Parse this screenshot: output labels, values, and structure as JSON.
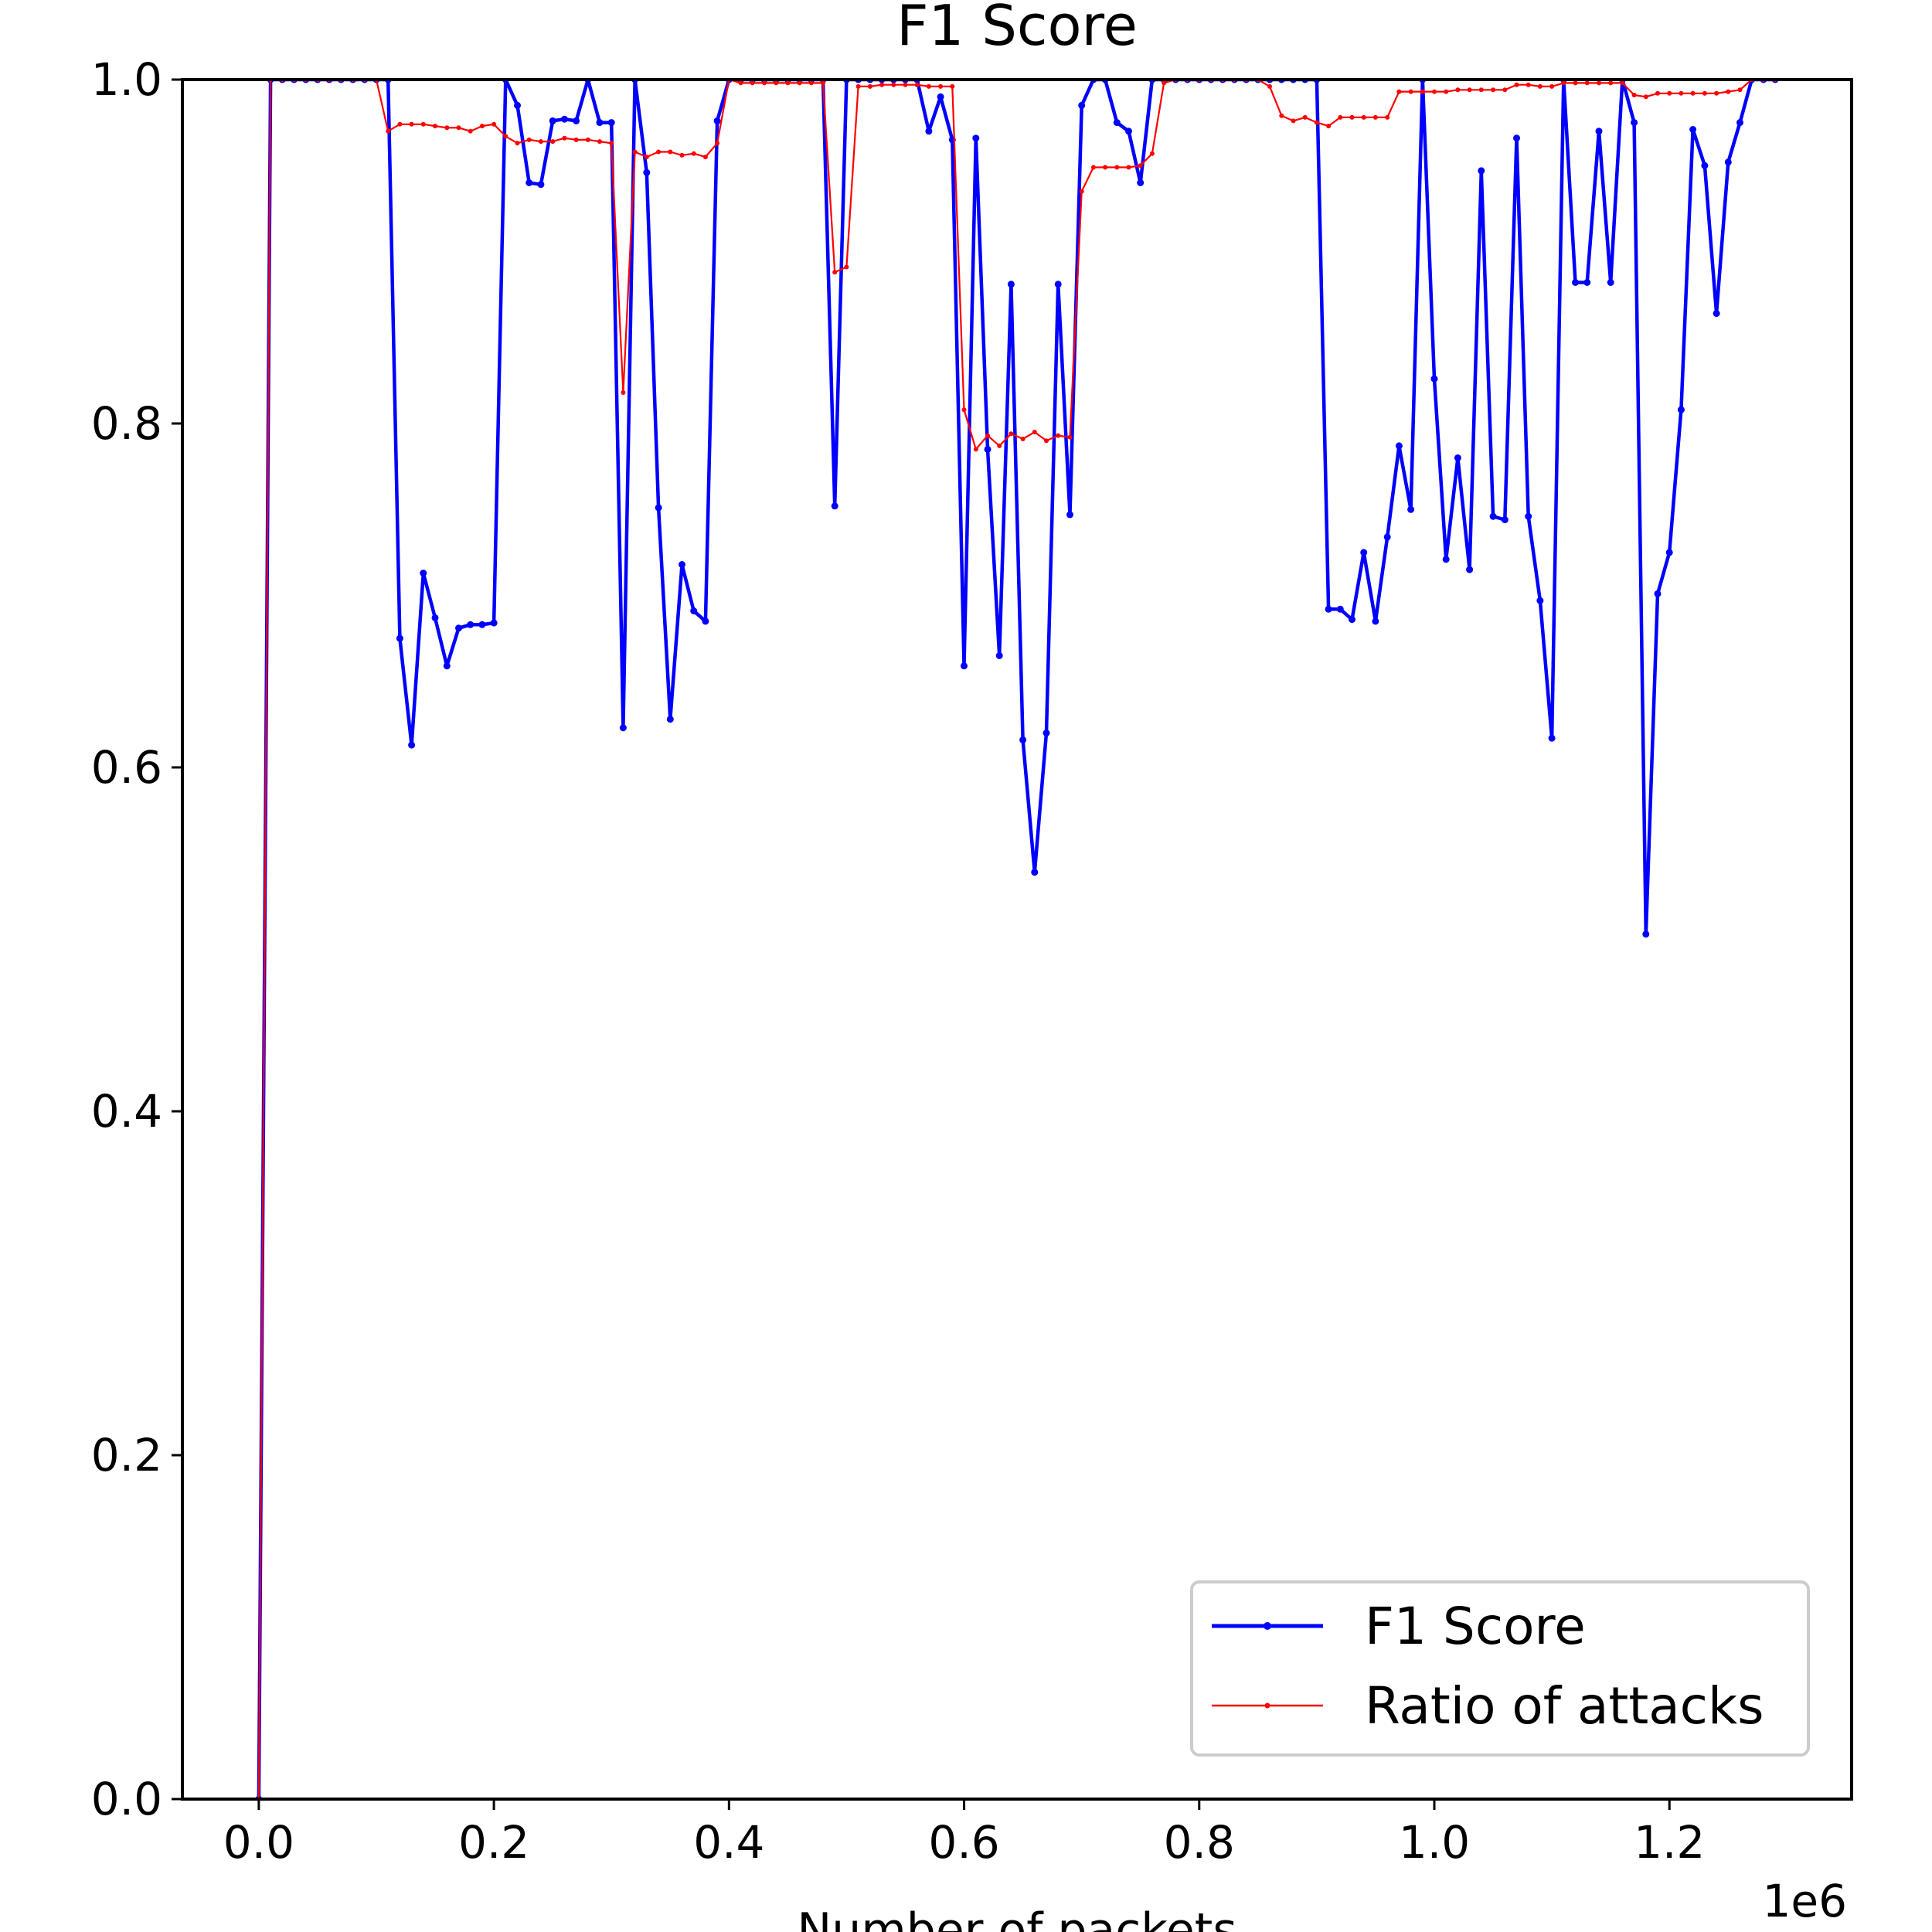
{
  "chart_data": {
    "type": "line",
    "title": "F1 Score",
    "xlabel": "Number of packets",
    "ylabel": "",
    "x_offset_label": "1e6",
    "xlim": [
      -0.065,
      1.355
    ],
    "ylim": [
      0.0,
      1.0
    ],
    "xticks": [
      0.0,
      0.2,
      0.4,
      0.6,
      0.8,
      1.0,
      1.2
    ],
    "xtick_labels": [
      "0.0",
      "0.2",
      "0.4",
      "0.6",
      "0.8",
      "1.0",
      "1.2"
    ],
    "yticks": [
      0.0,
      0.2,
      0.4,
      0.6,
      0.8,
      1.0
    ],
    "ytick_labels": [
      "0.0",
      "0.2",
      "0.4",
      "0.6",
      "0.8",
      "1.0"
    ],
    "grid": false,
    "legend_position": "lower-right",
    "x": [
      0.0,
      0.01,
      0.02,
      0.03,
      0.04,
      0.05,
      0.06,
      0.07,
      0.08,
      0.09,
      0.1,
      0.11,
      0.12,
      0.13,
      0.14,
      0.15,
      0.16,
      0.17,
      0.18,
      0.19,
      0.2,
      0.21,
      0.22,
      0.23,
      0.24,
      0.25,
      0.26,
      0.27,
      0.28,
      0.29,
      0.3,
      0.31,
      0.32,
      0.33,
      0.34,
      0.35,
      0.36,
      0.37,
      0.38,
      0.39,
      0.4,
      0.41,
      0.42,
      0.43,
      0.44,
      0.45,
      0.46,
      0.47,
      0.48,
      0.49,
      0.5,
      0.51,
      0.52,
      0.53,
      0.54,
      0.55,
      0.56,
      0.57,
      0.58,
      0.59,
      0.6,
      0.61,
      0.62,
      0.63,
      0.64,
      0.65,
      0.66,
      0.67,
      0.68,
      0.69,
      0.7,
      0.71,
      0.72,
      0.73,
      0.74,
      0.75,
      0.76,
      0.77,
      0.78,
      0.79,
      0.8,
      0.81,
      0.82,
      0.83,
      0.84,
      0.85,
      0.86,
      0.87,
      0.88,
      0.89,
      0.9,
      0.91,
      0.92,
      0.93,
      0.94,
      0.95,
      0.96,
      0.97,
      0.98,
      0.99,
      1.0,
      1.01,
      1.02,
      1.03,
      1.04,
      1.05,
      1.06,
      1.07,
      1.08,
      1.09,
      1.1,
      1.11,
      1.12,
      1.13,
      1.14,
      1.15,
      1.16,
      1.17,
      1.18,
      1.19,
      1.2,
      1.21,
      1.22,
      1.23,
      1.24,
      1.25,
      1.26,
      1.27,
      1.28,
      1.29
    ],
    "series": [
      {
        "name": "F1 Score",
        "color": "#0000ff",
        "values": [
          0.0,
          1.0,
          1.0,
          1.0,
          1.0,
          1.0,
          1.0,
          1.0,
          1.0,
          1.0,
          1.0,
          1.0,
          0.675,
          0.613,
          0.713,
          0.687,
          0.659,
          0.681,
          0.683,
          0.683,
          0.684,
          1.0,
          0.985,
          0.94,
          0.939,
          0.976,
          0.977,
          0.976,
          1.0,
          0.975,
          0.975,
          0.623,
          1.0,
          0.946,
          0.751,
          0.628,
          0.718,
          0.691,
          0.685,
          0.976,
          1.0,
          1.0,
          1.0,
          1.0,
          1.0,
          1.0,
          1.0,
          1.0,
          1.0,
          0.752,
          1.0,
          1.0,
          1.0,
          1.0,
          1.0,
          1.0,
          1.0,
          0.97,
          0.99,
          0.965,
          0.659,
          0.966,
          0.785,
          0.665,
          0.881,
          0.616,
          0.539,
          0.62,
          0.881,
          0.747,
          0.985,
          1.0,
          1.0,
          0.975,
          0.97,
          0.94,
          1.0,
          1.0,
          1.0,
          1.0,
          1.0,
          1.0,
          1.0,
          1.0,
          1.0,
          1.0,
          1.0,
          1.0,
          1.0,
          1.0,
          1.0,
          0.692,
          0.692,
          0.686,
          0.725,
          0.685,
          0.734,
          0.787,
          0.75,
          1.0,
          0.826,
          0.721,
          0.78,
          0.715,
          0.947,
          0.746,
          0.744,
          0.966,
          0.746,
          0.697,
          0.617,
          1.0,
          0.882,
          0.882,
          0.97,
          0.882,
          1.0,
          0.975,
          0.503,
          0.701,
          0.725,
          0.808,
          0.971,
          0.95,
          0.864,
          0.952,
          0.975,
          1.0,
          1.0,
          1.0
        ]
      },
      {
        "name": "Ratio of attacks",
        "color": "#ff0000",
        "values": [
          0.0,
          1.0,
          1.0,
          1.0,
          1.0,
          1.0,
          1.0,
          1.0,
          1.0,
          1.0,
          1.0,
          0.97,
          0.974,
          0.974,
          0.974,
          0.973,
          0.972,
          0.972,
          0.97,
          0.973,
          0.974,
          0.967,
          0.963,
          0.965,
          0.964,
          0.964,
          0.966,
          0.965,
          0.965,
          0.964,
          0.963,
          0.818,
          0.958,
          0.955,
          0.958,
          0.958,
          0.956,
          0.957,
          0.955,
          0.963,
          1.0,
          0.998,
          0.998,
          0.998,
          0.998,
          0.998,
          0.998,
          0.998,
          0.998,
          0.888,
          0.891,
          0.996,
          0.996,
          0.997,
          0.997,
          0.997,
          0.997,
          0.996,
          0.996,
          0.996,
          0.808,
          0.785,
          0.793,
          0.787,
          0.794,
          0.791,
          0.795,
          0.79,
          0.793,
          0.792,
          0.935,
          0.949,
          0.949,
          0.949,
          0.949,
          0.95,
          0.957,
          0.998,
          1.0,
          1.0,
          1.0,
          1.0,
          1.0,
          1.0,
          1.0,
          1.0,
          0.996,
          0.979,
          0.976,
          0.978,
          0.975,
          0.973,
          0.978,
          0.978,
          0.978,
          0.978,
          0.978,
          0.993,
          0.993,
          0.993,
          0.993,
          0.993,
          0.994,
          0.994,
          0.994,
          0.994,
          0.994,
          0.997,
          0.997,
          0.996,
          0.996,
          0.998,
          0.998,
          0.998,
          0.998,
          0.998,
          0.998,
          0.991,
          0.99,
          0.992,
          0.992,
          0.992,
          0.992,
          0.992,
          0.992,
          0.993,
          0.994,
          1.0,
          1.0,
          1.0
        ]
      }
    ]
  }
}
